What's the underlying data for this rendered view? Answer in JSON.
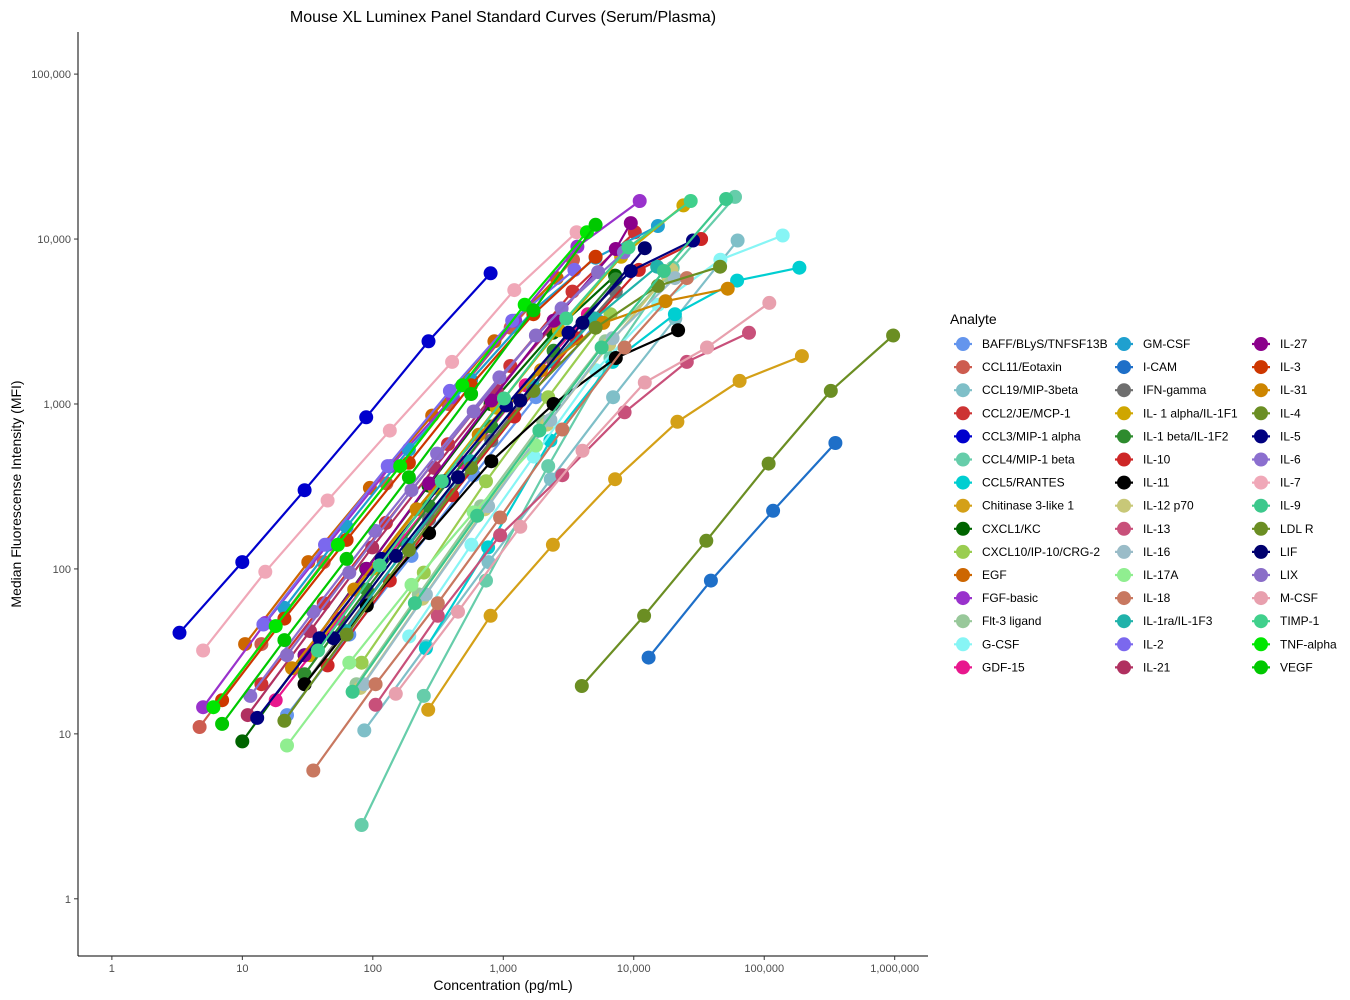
{
  "chart_data": {
    "type": "line",
    "title": "Mouse XL Luminex Panel Standard Curves (Serum/Plasma)",
    "xlabel": "Concentration (pg/mL)",
    "ylabel": "Median Fluorescense Intensity (MFI)",
    "x_scale": "log10",
    "y_scale": "log10",
    "xlim": [
      0.55,
      1800000
    ],
    "ylim": [
      0.45,
      180000
    ],
    "x_ticks": [
      1,
      10,
      100,
      1000,
      10000,
      100000,
      1000000
    ],
    "x_tick_labels": [
      "1",
      "10",
      "100",
      "1,000",
      "10,000",
      "100,000",
      "1,000,000"
    ],
    "y_ticks": [
      1,
      10,
      100,
      1000,
      10000,
      100000
    ],
    "y_tick_labels": [
      "1",
      "10",
      "100",
      "1,000",
      "10,000",
      "100,000"
    ],
    "grid": false,
    "legend_title": "Analyte",
    "legend_position": "right",
    "series": [
      {
        "name": "BAFF/BLyS/TNFSF13B",
        "color": "#6495ED",
        "x": [
          22,
          66,
          198,
          593,
          1778,
          5333
        ],
        "y": [
          13,
          40,
          120,
          370,
          1100,
          3200
        ]
      },
      {
        "name": "CCL11/Eotaxin",
        "color": "#CD5C4F",
        "x": [
          4.7,
          14,
          42,
          127,
          380,
          1140,
          3420
        ],
        "y": [
          11,
          35,
          110,
          330,
          1000,
          2900,
          7500
        ]
      },
      {
        "name": "CCL19/MIP-3beta",
        "color": "#7FBFC8",
        "x": [
          86,
          257,
          771,
          2313,
          6940,
          20820,
          62460
        ],
        "y": [
          10.5,
          34,
          110,
          350,
          1100,
          3300,
          9800
        ]
      },
      {
        "name": "CCL2/JE/MCP-1",
        "color": "#CD3333",
        "x": [
          14,
          42,
          126,
          377,
          1131,
          3394,
          10180
        ],
        "y": [
          20,
          62,
          190,
          570,
          1700,
          4800,
          11000
        ]
      },
      {
        "name": "CCL3/MIP-1 alpha",
        "color": "#0000CD",
        "x": [
          3.3,
          10,
          30,
          89,
          267,
          800
        ],
        "y": [
          41,
          110,
          300,
          830,
          2400,
          6200
        ]
      },
      {
        "name": "CCL4/MIP-1 beta",
        "color": "#66CDAA",
        "x": [
          82,
          246,
          737,
          2211,
          6633,
          19900,
          59700
        ],
        "y": [
          2.8,
          17,
          85,
          420,
          1900,
          6700,
          18000
        ]
      },
      {
        "name": "CCL5/RANTES",
        "color": "#00CED1",
        "x": [
          255,
          765,
          2295,
          6885,
          20655,
          61965,
          185900
        ],
        "y": [
          33,
          135,
          600,
          1800,
          3500,
          5600,
          6700
        ]
      },
      {
        "name": "Chitinase 3-like 1",
        "color": "#D4A017",
        "x": [
          266,
          800,
          2400,
          7200,
          21600,
          64800,
          194400
        ],
        "y": [
          14,
          52,
          140,
          350,
          780,
          1380,
          1950
        ]
      },
      {
        "name": "CXCL1/KC",
        "color": "#006400",
        "x": [
          10,
          30,
          89,
          267,
          800,
          2400,
          7200
        ],
        "y": [
          9,
          30,
          100,
          320,
          1000,
          2700,
          6000
        ]
      },
      {
        "name": "CXCL10/IP-10/CRG-2",
        "color": "#9ACD50",
        "x": [
          82,
          246,
          737,
          2211,
          6633
        ],
        "y": [
          27,
          95,
          340,
          1100,
          3500
        ]
      },
      {
        "name": "EGF",
        "color": "#CD6600",
        "x": [
          10.5,
          32,
          95,
          285,
          855,
          2565
        ],
        "y": [
          35,
          110,
          310,
          850,
          2400,
          5800
        ]
      },
      {
        "name": "FGF-basic",
        "color": "#9932CC",
        "x": [
          5,
          15,
          45,
          137,
          411,
          1234,
          3700,
          11100
        ],
        "y": [
          14.5,
          47,
          140,
          420,
          1100,
          3200,
          9000,
          17000
        ]
      },
      {
        "name": "Flt-3 ligand",
        "color": "#98C89A",
        "x": [
          75,
          225,
          675,
          2025,
          6075,
          18225
        ],
        "y": [
          20,
          70,
          240,
          780,
          2400,
          6000
        ]
      },
      {
        "name": "G-CSF",
        "color": "#87F5F5",
        "x": [
          190,
          570,
          1710,
          5130,
          15390,
          46170,
          138500
        ],
        "y": [
          39,
          140,
          480,
          1600,
          4000,
          7500,
          10500
        ]
      },
      {
        "name": "GDF-15",
        "color": "#E8178D",
        "x": [
          18,
          55,
          165,
          495,
          1484,
          4450
        ],
        "y": [
          16,
          50,
          150,
          440,
          1300,
          3500
        ]
      },
      {
        "name": "GM-CSF",
        "color": "#1FA0CF",
        "x": [
          21,
          63,
          189,
          567,
          1700,
          5100,
          15300
        ],
        "y": [
          58,
          180,
          530,
          1400,
          3700,
          7700,
          12000
        ]
      },
      {
        "name": "I-CAM",
        "color": "#1E6FC8",
        "x": [
          13000,
          39000,
          117000,
          351000
        ],
        "y": [
          29,
          85,
          225,
          580
        ]
      },
      {
        "name": "IFN-gamma",
        "color": "#6E6E6E",
        "x": [
          30,
          90,
          270,
          810,
          2430,
          7290
        ],
        "y": [
          20,
          65,
          200,
          600,
          1800,
          4800
        ]
      },
      {
        "name": "IL- 1 alpha/IL-1F1",
        "color": "#CFA600",
        "x": [
          33,
          99,
          296,
          889,
          2667,
          8000,
          24000
        ],
        "y": [
          30,
          100,
          310,
          950,
          2800,
          7800,
          16000
        ]
      },
      {
        "name": "IL-1 beta/IL-1F2",
        "color": "#2E8B2E",
        "x": [
          30,
          90,
          270,
          810,
          2430,
          7290
        ],
        "y": [
          23,
          75,
          240,
          730,
          2100,
          5700
        ]
      },
      {
        "name": "IL-10",
        "color": "#CD2626",
        "x": [
          45,
          135,
          405,
          1215,
          3645,
          10935,
          32800
        ],
        "y": [
          26,
          85,
          280,
          840,
          2500,
          6500,
          10000
        ]
      },
      {
        "name": "IL-11",
        "color": "#000000",
        "x": [
          30,
          90,
          270,
          810,
          2430,
          7290,
          21870
        ],
        "y": [
          20,
          60,
          165,
          450,
          1000,
          1900,
          2800
        ]
      },
      {
        "name": "IL-12 p70",
        "color": "#C8C878",
        "x": [
          80,
          240,
          720,
          2160,
          6480,
          19440
        ],
        "y": [
          19,
          66,
          230,
          750,
          2300,
          6500
        ]
      },
      {
        "name": "IL-13",
        "color": "#C8507A",
        "x": [
          105,
          315,
          945,
          2835,
          8505,
          25500,
          76500
        ],
        "y": [
          15,
          52,
          160,
          370,
          890,
          1800,
          2700
        ]
      },
      {
        "name": "IL-16",
        "color": "#9ABCC8",
        "x": [
          85,
          255,
          765,
          2295,
          6885,
          20655
        ],
        "y": [
          20,
          70,
          240,
          800,
          2500,
          5800
        ]
      },
      {
        "name": "IL-17A",
        "color": "#90EE90",
        "x": [
          22,
          66,
          198,
          593,
          1778
        ],
        "y": [
          8.5,
          27,
          80,
          220,
          560
        ]
      },
      {
        "name": "IL-18",
        "color": "#C87860",
        "x": [
          35,
          105,
          315,
          945,
          2835,
          8505,
          25515
        ],
        "y": [
          6,
          20,
          62,
          205,
          700,
          2200,
          5800
        ]
      },
      {
        "name": "IL-1ra/IL-1F3",
        "color": "#20B2AA",
        "x": [
          62,
          187,
          560,
          1680,
          5040,
          15120
        ],
        "y": [
          42,
          140,
          450,
          1300,
          3300,
          6800
        ]
      },
      {
        "name": "IL-2",
        "color": "#7B68EE",
        "x": [
          14.5,
          43,
          130,
          390,
          1170,
          3510
        ],
        "y": [
          46,
          140,
          420,
          1200,
          3200,
          6500
        ]
      },
      {
        "name": "IL-21",
        "color": "#B03060",
        "x": [
          11,
          33,
          99,
          296,
          889,
          2667
        ],
        "y": [
          13,
          42,
          135,
          410,
          1200,
          3300
        ]
      },
      {
        "name": "IL-27",
        "color": "#8B008B",
        "x": [
          30,
          90,
          270,
          810,
          2430,
          7290,
          9500
        ],
        "y": [
          30,
          100,
          330,
          1050,
          3200,
          8700,
          12500
        ]
      },
      {
        "name": "IL-3",
        "color": "#CD3700",
        "x": [
          7,
          21,
          63,
          189,
          566,
          1700,
          5100
        ],
        "y": [
          16,
          50,
          150,
          440,
          1300,
          3500,
          7800
        ]
      },
      {
        "name": "IL-31",
        "color": "#CD8500",
        "x": [
          24,
          72,
          216,
          648,
          1944,
          5832,
          17500,
          52500
        ],
        "y": [
          25,
          75,
          230,
          650,
          1600,
          3100,
          4200,
          5000
        ]
      },
      {
        "name": "IL-4",
        "color": "#6B8E23",
        "x": [
          21,
          63,
          189,
          567,
          1700,
          5100,
          15300,
          45900
        ],
        "y": [
          12,
          40,
          130,
          410,
          1200,
          2900,
          5200,
          6800
        ]
      },
      {
        "name": "IL-5",
        "color": "#000080",
        "x": [
          13,
          39,
          117,
          351,
          1053,
          3160,
          9480,
          28440
        ],
        "y": [
          12.5,
          38,
          115,
          340,
          980,
          2700,
          6400,
          9800
        ]
      },
      {
        "name": "IL-6",
        "color": "#8B6FCF",
        "x": [
          11.5,
          35,
          104,
          311,
          933,
          2800,
          8400
        ],
        "y": [
          17,
          55,
          170,
          500,
          1450,
          3800,
          8300
        ]
      },
      {
        "name": "IL-7",
        "color": "#F0A8B8",
        "x": [
          5,
          15,
          45,
          135,
          405,
          1215,
          3645
        ],
        "y": [
          32,
          96,
          260,
          690,
          1800,
          4900,
          11000
        ]
      },
      {
        "name": "IL-9",
        "color": "#3CC88C",
        "x": [
          70,
          210,
          630,
          1890,
          5670,
          17010,
          51030
        ],
        "y": [
          18,
          62,
          210,
          690,
          2200,
          6400,
          17500
        ]
      },
      {
        "name": "LDL R",
        "color": "#6B8E23",
        "x": [
          4000,
          12000,
          36000,
          108000,
          324000,
          972000
        ],
        "y": [
          19.5,
          52,
          148,
          435,
          1200,
          2600
        ]
      },
      {
        "name": "LIF",
        "color": "#00006E",
        "x": [
          50,
          150,
          450,
          1350,
          4050,
          12150
        ],
        "y": [
          38,
          120,
          360,
          1050,
          3100,
          8800
        ]
      },
      {
        "name": "LIX",
        "color": "#8A6DC8",
        "x": [
          22,
          66,
          198,
          593,
          1778,
          5333
        ],
        "y": [
          30,
          95,
          300,
          900,
          2600,
          6300
        ]
      },
      {
        "name": "M-CSF",
        "color": "#E8A0AE",
        "x": [
          150,
          450,
          1350,
          4050,
          12150,
          36450,
          109350
        ],
        "y": [
          17.5,
          55,
          180,
          520,
          1350,
          2200,
          4100
        ]
      },
      {
        "name": "TIMP-1",
        "color": "#40D08C",
        "x": [
          38,
          113,
          338,
          1013,
          3038,
          9113,
          27338
        ],
        "y": [
          32,
          105,
          340,
          1080,
          3300,
          8900,
          17000
        ]
      },
      {
        "name": "TNF-alpha",
        "color": "#00E600",
        "x": [
          6,
          18,
          54,
          162,
          486,
          1458,
          4374
        ],
        "y": [
          14.5,
          45,
          140,
          420,
          1300,
          4000,
          11000
        ]
      },
      {
        "name": "VEGF",
        "color": "#00C800",
        "x": [
          7,
          21,
          63,
          189,
          567,
          1700,
          5100
        ],
        "y": [
          11.5,
          37,
          115,
          360,
          1150,
          3700,
          12200
        ]
      }
    ]
  }
}
